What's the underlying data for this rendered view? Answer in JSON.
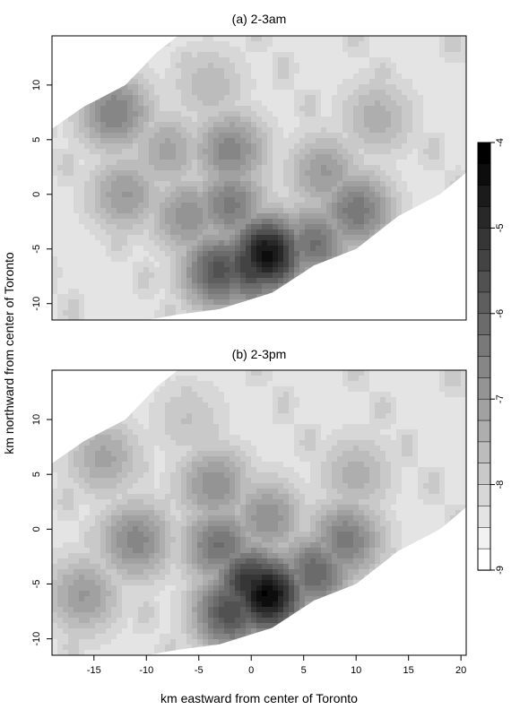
{
  "figure": {
    "xlabel": "km eastward from center of Toronto",
    "ylabel": "km northward from center of Toronto"
  },
  "chart_data": [
    {
      "type": "heatmap",
      "title": "(a) 2-3am",
      "xlim": [
        -19,
        20.5
      ],
      "ylim": [
        -11.5,
        14.5
      ],
      "xticks": [
        -15,
        -10,
        -5,
        0,
        5,
        10,
        15,
        20
      ],
      "yticks": [
        -10,
        -5,
        0,
        5,
        10
      ],
      "show_xticks": false,
      "value_range": [
        -9,
        -4
      ],
      "hotspots": [
        {
          "x": 1.5,
          "y": -5.5,
          "value": -4.3
        },
        {
          "x": 0.0,
          "y": -6.5,
          "value": -5.2
        },
        {
          "x": -3.0,
          "y": -7.0,
          "value": -5.6
        },
        {
          "x": 6.0,
          "y": -4.5,
          "value": -6.2
        },
        {
          "x": -2.0,
          "y": -1.0,
          "value": -6.4
        },
        {
          "x": 10.0,
          "y": -1.5,
          "value": -6.3
        },
        {
          "x": -6.0,
          "y": -2.0,
          "value": -6.8
        },
        {
          "x": -12.0,
          "y": 0.0,
          "value": -7.0
        },
        {
          "x": -2.0,
          "y": 4.0,
          "value": -6.6
        },
        {
          "x": -13.0,
          "y": 7.5,
          "value": -6.5
        },
        {
          "x": -8.0,
          "y": 4.0,
          "value": -7.2
        },
        {
          "x": 7.0,
          "y": 2.0,
          "value": -7.0
        },
        {
          "x": 12.0,
          "y": 7.0,
          "value": -7.4
        },
        {
          "x": -4.0,
          "y": 10.0,
          "value": -7.6
        }
      ]
    },
    {
      "type": "heatmap",
      "title": "(b) 2-3pm",
      "xlim": [
        -19,
        20.5
      ],
      "ylim": [
        -11.5,
        14.5
      ],
      "xticks": [
        -15,
        -10,
        -5,
        0,
        5,
        10,
        15,
        20
      ],
      "yticks": [
        -10,
        -5,
        0,
        5,
        10
      ],
      "show_xticks": true,
      "value_range": [
        -9,
        -4
      ],
      "hotspots": [
        {
          "x": 1.5,
          "y": -6.0,
          "value": -4.1
        },
        {
          "x": 0.0,
          "y": -5.0,
          "value": -4.9
        },
        {
          "x": -2.0,
          "y": -7.5,
          "value": -5.5
        },
        {
          "x": 6.0,
          "y": -4.0,
          "value": -6.0
        },
        {
          "x": 9.0,
          "y": -1.0,
          "value": -6.4
        },
        {
          "x": -3.0,
          "y": -1.5,
          "value": -6.2
        },
        {
          "x": -11.0,
          "y": -1.0,
          "value": -6.6
        },
        {
          "x": -16.0,
          "y": -6.0,
          "value": -7.0
        },
        {
          "x": -3.5,
          "y": 4.0,
          "value": -6.8
        },
        {
          "x": -14.0,
          "y": 6.5,
          "value": -7.2
        },
        {
          "x": 1.5,
          "y": 1.0,
          "value": -6.8
        },
        {
          "x": 10.0,
          "y": 5.0,
          "value": -7.4
        },
        {
          "x": -6.0,
          "y": 10.0,
          "value": -7.8
        }
      ]
    }
  ],
  "colorbar": {
    "ticks": [
      -4,
      -5,
      -6,
      -7,
      -8,
      -9
    ],
    "levels": 20,
    "colors": {
      "min": "#ffffff",
      "max": "#000000"
    }
  }
}
